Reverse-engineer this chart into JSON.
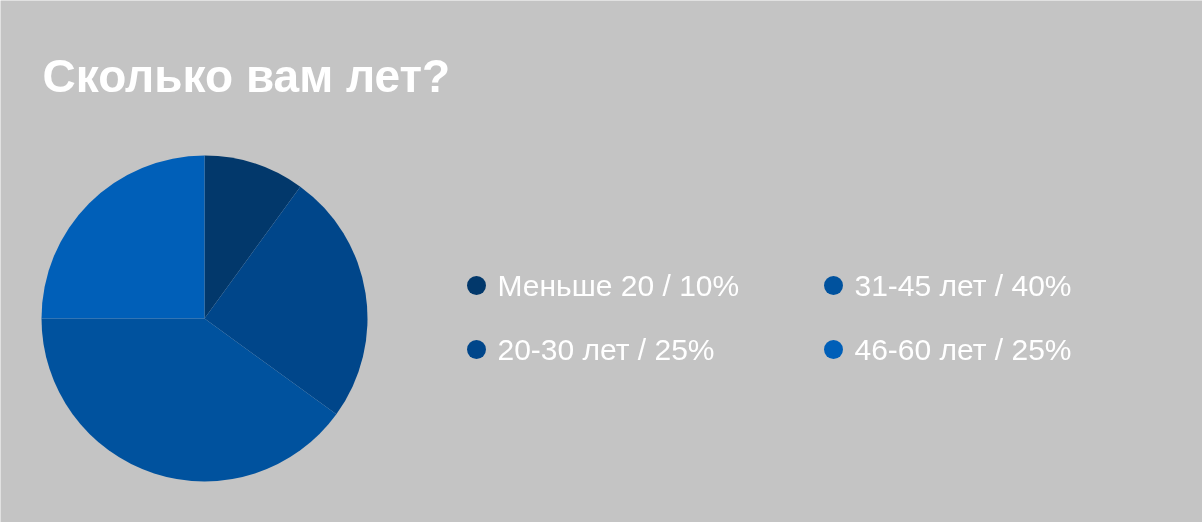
{
  "chart_data": {
    "type": "pie",
    "title": "Сколько вам лет?",
    "categories": [
      "Меньше 20 / 10%",
      "20-30 лет / 25%",
      "31-45 лет / 40%",
      "46-60 лет / 25%"
    ],
    "values": [
      10,
      25,
      40,
      25
    ],
    "colors": [
      "#02386b",
      "#00468a",
      "#00529e",
      "#005fb8"
    ],
    "legend": "right"
  }
}
